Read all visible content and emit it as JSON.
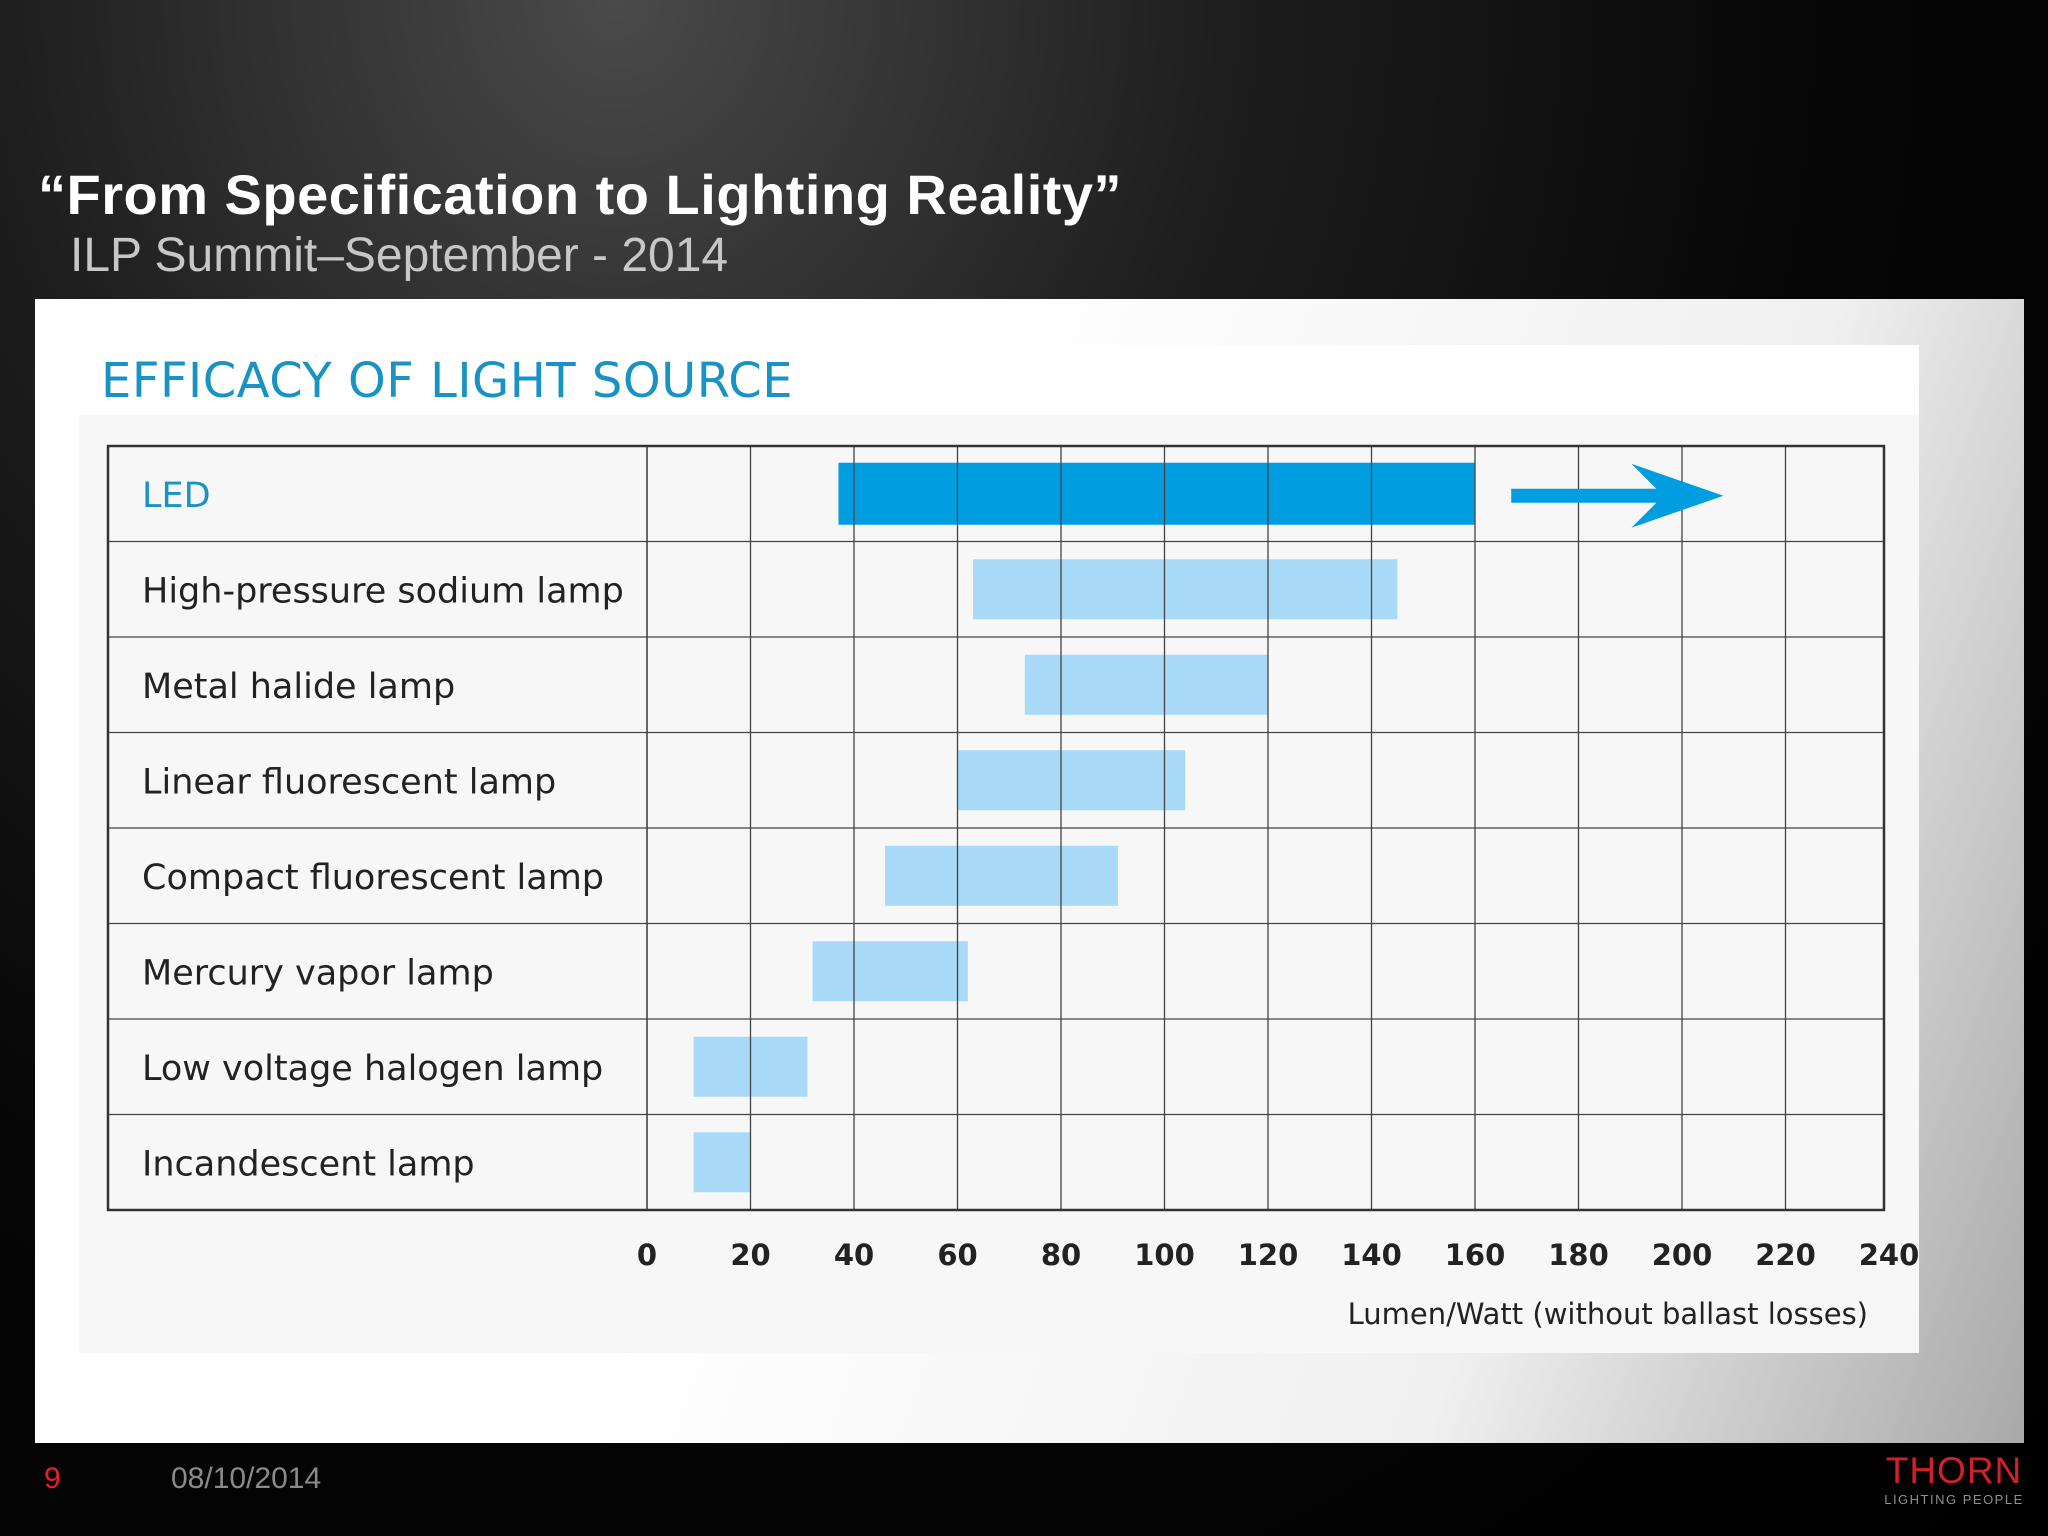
{
  "slide": {
    "title": "“From Specification to Lighting Reality”",
    "subtitle": "ILP Summit–September - 2014",
    "page_number": "9",
    "date": "08/10/2014",
    "logo_name": "THORN",
    "logo_tagline": "LIGHTING PEOPLE"
  },
  "colors": {
    "led_bar": "#009ee0",
    "other_bar": "#a8daf8",
    "title_blue": "#1992c4",
    "brand_red": "#d0202a"
  },
  "chart_data": {
    "type": "bar",
    "orientation": "horizontal-range",
    "title": "EFFICACY OF LIGHT SOURCE",
    "xlabel": "Lumen/Watt (without ballast losses)",
    "xlim": [
      0,
      240
    ],
    "xticks": [
      0,
      20,
      40,
      60,
      80,
      100,
      120,
      140,
      160,
      180,
      200,
      220,
      240
    ],
    "grid": true,
    "categories": [
      "LED",
      "High-pressure sodium lamp",
      "Metal halide lamp",
      "Linear fluorescent lamp",
      "Compact fluorescent lamp",
      "Mercury vapor lamp",
      "Low voltage halogen lamp",
      "Incandescent lamp"
    ],
    "ranges": [
      [
        37,
        160
      ],
      [
        63,
        145
      ],
      [
        73,
        120
      ],
      [
        60,
        104
      ],
      [
        46,
        91
      ],
      [
        32,
        62
      ],
      [
        9,
        31
      ],
      [
        9,
        20
      ]
    ],
    "highlight": "LED",
    "arrow": {
      "category": "LED",
      "from": 167,
      "to": 208
    }
  }
}
